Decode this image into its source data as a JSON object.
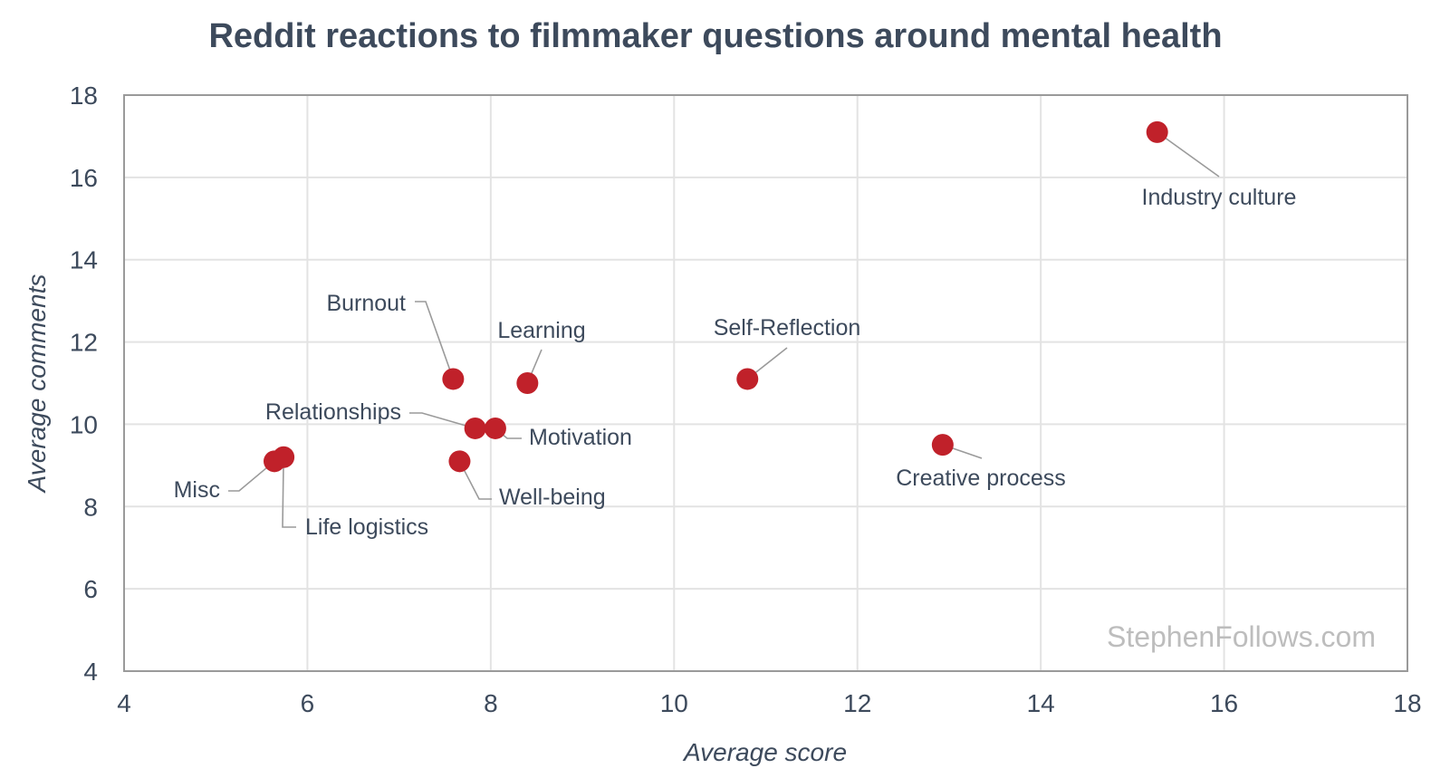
{
  "watermark": "StephenFollows.com",
  "chart_data": {
    "type": "scatter",
    "title": "Reddit reactions to filmmaker questions around mental health",
    "xlabel": "Average score",
    "ylabel": "Average comments",
    "xlim": [
      4,
      18
    ],
    "ylim": [
      4,
      18
    ],
    "xticks": [
      4,
      6,
      8,
      10,
      12,
      14,
      16,
      18
    ],
    "yticks": [
      4,
      6,
      8,
      10,
      12,
      14,
      16,
      18
    ],
    "grid": true,
    "point_color": "#c0212a",
    "points": [
      {
        "label": "Industry culture",
        "x": 15.27,
        "y": 17.1
      },
      {
        "label": "Self-Reflection",
        "x": 10.8,
        "y": 11.1
      },
      {
        "label": "Creative process",
        "x": 12.93,
        "y": 9.5
      },
      {
        "label": "Burnout",
        "x": 7.59,
        "y": 11.1
      },
      {
        "label": "Learning",
        "x": 8.4,
        "y": 11.0
      },
      {
        "label": "Relationships",
        "x": 7.83,
        "y": 9.9
      },
      {
        "label": "Motivation",
        "x": 8.05,
        "y": 9.9
      },
      {
        "label": "Well-being",
        "x": 7.66,
        "y": 9.1
      },
      {
        "label": "Misc",
        "x": 5.64,
        "y": 9.1
      },
      {
        "label": "Life logistics",
        "x": 5.74,
        "y": 9.2
      }
    ]
  }
}
